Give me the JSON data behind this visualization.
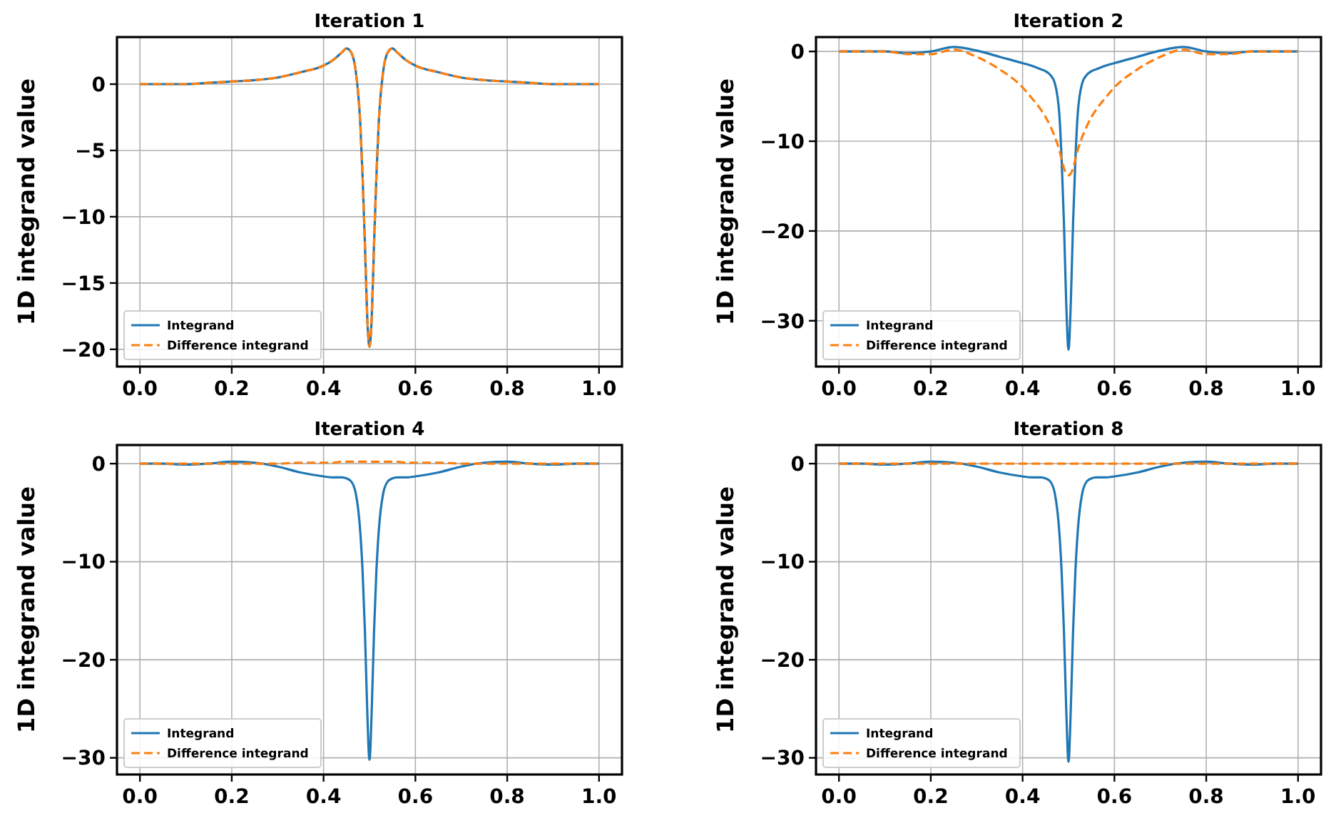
{
  "chart_data": [
    {
      "type": "line",
      "title": "Iteration 1",
      "ylabel": "1D integrand value",
      "legend": "bottom left",
      "grid": true,
      "xlim": [
        -0.05,
        1.05
      ],
      "ylim": [
        -21.3,
        3.55
      ],
      "xticks": [
        {
          "value": 0,
          "label": "0.0"
        },
        {
          "value": 0.2,
          "label": "0.2"
        },
        {
          "value": 0.4,
          "label": "0.4"
        },
        {
          "value": 0.6,
          "label": "0.6"
        },
        {
          "value": 0.8,
          "label": "0.8"
        },
        {
          "value": 1,
          "label": "1.0"
        }
      ],
      "yticks": [
        {
          "value": -20,
          "label": "−20"
        },
        {
          "value": -15,
          "label": "−15"
        },
        {
          "value": -10,
          "label": "−10"
        },
        {
          "value": -5,
          "label": "−5"
        },
        {
          "value": 0,
          "label": "0"
        }
      ],
      "x": [
        0,
        0.05,
        0.1,
        0.15,
        0.2,
        0.25,
        0.3,
        0.35,
        0.4,
        0.42,
        0.44,
        0.45,
        0.46,
        0.47,
        0.48,
        0.485,
        0.49,
        0.495,
        0.5,
        0.505,
        0.51,
        0.515,
        0.52,
        0.53,
        0.54,
        0.55,
        0.56,
        0.58,
        0.6,
        0.65,
        0.7,
        0.75,
        0.8,
        0.85,
        0.9,
        0.95,
        1
      ],
      "series": [
        {
          "name": "Integrand",
          "color": "#1f77b4",
          "line_style": "solid",
          "values": [
            0,
            0,
            0,
            0.1,
            0.2,
            0.3,
            0.5,
            0.9,
            1.4,
            1.8,
            2.4,
            2.7,
            2.4,
            1,
            -3,
            -7,
            -12,
            -17.5,
            -19.8,
            -17.5,
            -12,
            -7,
            -3,
            1,
            2.4,
            2.7,
            2.4,
            1.8,
            1.4,
            0.9,
            0.5,
            0.3,
            0.2,
            0.1,
            0,
            0,
            0
          ]
        },
        {
          "name": "Difference integrand",
          "color": "#ff7f0e",
          "line_style": "dashed",
          "values": [
            0,
            0,
            0,
            0.1,
            0.2,
            0.3,
            0.5,
            0.9,
            1.4,
            1.8,
            2.4,
            2.7,
            2.4,
            1,
            -3,
            -7,
            -12,
            -17.5,
            -19.8,
            -17.5,
            -12,
            -7,
            -3,
            1,
            2.4,
            2.7,
            2.4,
            1.8,
            1.4,
            0.9,
            0.5,
            0.3,
            0.2,
            0.1,
            0,
            0,
            0
          ]
        }
      ]
    },
    {
      "type": "line",
      "title": "Iteration 2",
      "ylabel": "1D integrand value",
      "legend": "bottom left",
      "grid": true,
      "xlim": [
        -0.05,
        1.05
      ],
      "ylim": [
        -35.1,
        1.6
      ],
      "xticks": [
        {
          "value": 0,
          "label": "0.0"
        },
        {
          "value": 0.2,
          "label": "0.2"
        },
        {
          "value": 0.4,
          "label": "0.4"
        },
        {
          "value": 0.6,
          "label": "0.6"
        },
        {
          "value": 0.8,
          "label": "0.8"
        },
        {
          "value": 1,
          "label": "1.0"
        }
      ],
      "yticks": [
        {
          "value": -30,
          "label": "−30"
        },
        {
          "value": -20,
          "label": "−20"
        },
        {
          "value": -10,
          "label": "−10"
        },
        {
          "value": 0,
          "label": "0"
        }
      ],
      "x": [
        0,
        0.05,
        0.1,
        0.15,
        0.2,
        0.25,
        0.3,
        0.35,
        0.4,
        0.42,
        0.44,
        0.45,
        0.46,
        0.47,
        0.48,
        0.485,
        0.49,
        0.495,
        0.5,
        0.505,
        0.51,
        0.515,
        0.52,
        0.53,
        0.54,
        0.55,
        0.56,
        0.58,
        0.6,
        0.65,
        0.7,
        0.75,
        0.8,
        0.85,
        0.9,
        0.95,
        1
      ],
      "series": [
        {
          "name": "Integrand",
          "color": "#1f77b4",
          "line_style": "solid",
          "values": [
            0,
            0,
            0,
            -0.2,
            0,
            0.5,
            0.1,
            -0.6,
            -1.3,
            -1.6,
            -2,
            -2.2,
            -2.6,
            -3.5,
            -7,
            -12,
            -19,
            -28,
            -33.2,
            -28,
            -19,
            -12,
            -7,
            -3.5,
            -2.6,
            -2.2,
            -2,
            -1.6,
            -1.3,
            -0.6,
            0.1,
            0.5,
            0,
            -0.2,
            0,
            0,
            0
          ]
        },
        {
          "name": "Difference integrand",
          "color": "#ff7f0e",
          "line_style": "dashed",
          "values": [
            0,
            0,
            0,
            -0.3,
            -0.3,
            0.2,
            -0.6,
            -2,
            -4,
            -5.2,
            -6.5,
            -7.3,
            -8.3,
            -9.5,
            -11,
            -12,
            -13,
            -13.6,
            -13.8,
            -13.6,
            -13,
            -12,
            -11,
            -9.5,
            -8.3,
            -7.3,
            -6.5,
            -5.2,
            -4,
            -2,
            -0.6,
            0.2,
            -0.3,
            -0.3,
            0,
            0,
            0
          ]
        }
      ]
    },
    {
      "type": "line",
      "title": "Iteration 4",
      "ylabel": "1D integrand value",
      "legend": "bottom left",
      "grid": true,
      "xlim": [
        -0.05,
        1.05
      ],
      "ylim": [
        -31.7,
        1.9
      ],
      "xticks": [
        {
          "value": 0,
          "label": "0.0"
        },
        {
          "value": 0.2,
          "label": "0.2"
        },
        {
          "value": 0.4,
          "label": "0.4"
        },
        {
          "value": 0.6,
          "label": "0.6"
        },
        {
          "value": 0.8,
          "label": "0.8"
        },
        {
          "value": 1,
          "label": "1.0"
        }
      ],
      "yticks": [
        {
          "value": -30,
          "label": "−30"
        },
        {
          "value": -20,
          "label": "−20"
        },
        {
          "value": -10,
          "label": "−10"
        },
        {
          "value": 0,
          "label": "0"
        }
      ],
      "x": [
        0,
        0.05,
        0.1,
        0.15,
        0.2,
        0.25,
        0.3,
        0.35,
        0.4,
        0.42,
        0.44,
        0.45,
        0.46,
        0.47,
        0.48,
        0.485,
        0.49,
        0.495,
        0.5,
        0.505,
        0.51,
        0.515,
        0.52,
        0.53,
        0.54,
        0.55,
        0.56,
        0.58,
        0.6,
        0.65,
        0.7,
        0.75,
        0.8,
        0.85,
        0.9,
        0.95,
        1
      ],
      "series": [
        {
          "name": "Integrand",
          "color": "#1f77b4",
          "line_style": "solid",
          "values": [
            0,
            0,
            -0.1,
            0,
            0.2,
            0.1,
            -0.3,
            -0.9,
            -1.3,
            -1.4,
            -1.4,
            -1.5,
            -1.8,
            -3,
            -7,
            -11,
            -17,
            -25,
            -30.2,
            -25,
            -17,
            -11,
            -7,
            -3,
            -1.8,
            -1.5,
            -1.4,
            -1.4,
            -1.3,
            -0.9,
            -0.3,
            0.1,
            0.2,
            0,
            -0.1,
            0,
            0
          ]
        },
        {
          "name": "Difference integrand",
          "color": "#ff7f0e",
          "line_style": "dashed",
          "values": [
            0,
            0,
            0,
            0,
            0,
            0,
            0,
            0.1,
            0.1,
            0.1,
            0.2,
            0.2,
            0.2,
            0.2,
            0.2,
            0.2,
            0.2,
            0.2,
            0.2,
            0.2,
            0.2,
            0.2,
            0.2,
            0.2,
            0.2,
            0.2,
            0.2,
            0.1,
            0.1,
            0.1,
            0,
            0,
            0,
            0,
            0,
            0,
            0
          ]
        }
      ]
    },
    {
      "type": "line",
      "title": "Iteration 8",
      "ylabel": "1D integrand value",
      "legend": "bottom left",
      "grid": true,
      "xlim": [
        -0.05,
        1.05
      ],
      "ylim": [
        -31.7,
        1.9
      ],
      "xticks": [
        {
          "value": 0,
          "label": "0.0"
        },
        {
          "value": 0.2,
          "label": "0.2"
        },
        {
          "value": 0.4,
          "label": "0.4"
        },
        {
          "value": 0.6,
          "label": "0.6"
        },
        {
          "value": 0.8,
          "label": "0.8"
        },
        {
          "value": 1,
          "label": "1.0"
        }
      ],
      "yticks": [
        {
          "value": -30,
          "label": "−30"
        },
        {
          "value": -20,
          "label": "−20"
        },
        {
          "value": -10,
          "label": "−10"
        },
        {
          "value": 0,
          "label": "0"
        }
      ],
      "x": [
        0,
        0.05,
        0.1,
        0.15,
        0.2,
        0.25,
        0.3,
        0.35,
        0.4,
        0.42,
        0.44,
        0.45,
        0.46,
        0.47,
        0.48,
        0.485,
        0.49,
        0.495,
        0.5,
        0.505,
        0.51,
        0.515,
        0.52,
        0.53,
        0.54,
        0.55,
        0.56,
        0.58,
        0.6,
        0.65,
        0.7,
        0.75,
        0.8,
        0.85,
        0.9,
        0.95,
        1
      ],
      "series": [
        {
          "name": "Integrand",
          "color": "#1f77b4",
          "line_style": "solid",
          "values": [
            0,
            0,
            -0.1,
            0,
            0.2,
            0.1,
            -0.3,
            -0.9,
            -1.3,
            -1.4,
            -1.4,
            -1.5,
            -1.8,
            -3,
            -7,
            -11,
            -17,
            -25,
            -30.4,
            -25,
            -17,
            -11,
            -7,
            -3,
            -1.8,
            -1.5,
            -1.4,
            -1.4,
            -1.3,
            -0.9,
            -0.3,
            0.1,
            0.2,
            0,
            -0.1,
            0,
            0
          ]
        },
        {
          "name": "Difference integrand",
          "color": "#ff7f0e",
          "line_style": "dashed",
          "values": [
            0,
            0,
            0,
            0,
            0,
            0,
            0,
            0,
            0,
            0,
            0,
            0,
            0,
            0,
            0,
            0,
            0,
            0,
            0,
            0,
            0,
            0,
            0,
            0,
            0,
            0,
            0,
            0,
            0,
            0,
            0,
            0,
            0,
            0,
            0,
            0,
            0
          ]
        }
      ]
    }
  ]
}
